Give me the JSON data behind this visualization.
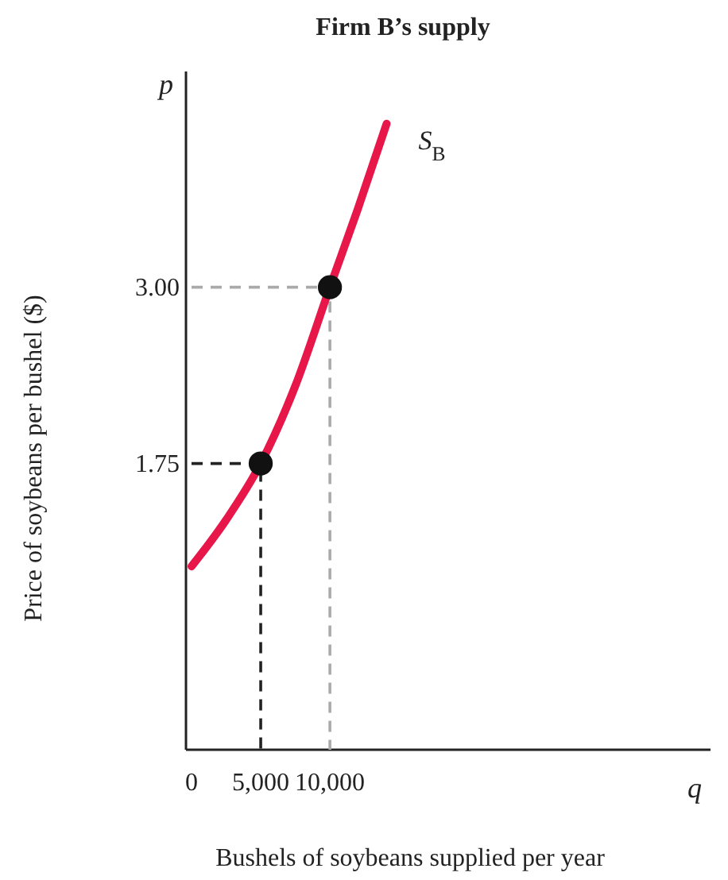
{
  "chart_data": {
    "type": "line",
    "title": "Firm B’s supply",
    "xlabel": "Bushels of soybeans supplied per year",
    "ylabel": "Price of soybeans per bushel ($)",
    "annotations": [
      "p",
      "q"
    ],
    "xlim": [
      -400,
      37500
    ],
    "ylim": [
      -0.28,
      4.53
    ],
    "xticks": [
      0,
      {
        "value": 5000,
        "label": "5,000"
      },
      {
        "value": 10000,
        "label": "10,000"
      }
    ],
    "yticks": [
      {
        "value": 1.75,
        "label": "1.75"
      },
      {
        "value": 3.0,
        "label": "3.00"
      }
    ],
    "grid": false,
    "legend": false,
    "series": [
      {
        "line_style": "dashed",
        "color": "#222222",
        "x": [
          0,
          5000,
          5000
        ],
        "values": [
          1.75,
          1.75,
          -0.28
        ]
      },
      {
        "line_style": "dashed",
        "color": "#aaaaaa",
        "x": [
          0,
          10000,
          10000
        ],
        "values": [
          3.0,
          3.0,
          -0.28
        ]
      },
      {
        "name": "S$_{B}$",
        "color": "#e8174a",
        "line_style": "solid",
        "x": [
          0,
          2500,
          5000,
          7500,
          10000,
          12000,
          14100
        ],
        "values": [
          1.02,
          1.35,
          1.75,
          2.3,
          3.0,
          3.55,
          4.16
        ]
      },
      {
        "type": "scatter",
        "marker": "circle",
        "color": "#111111",
        "x": [
          5000,
          10000
        ],
        "values": [
          1.75,
          3.0
        ]
      }
    ]
  }
}
